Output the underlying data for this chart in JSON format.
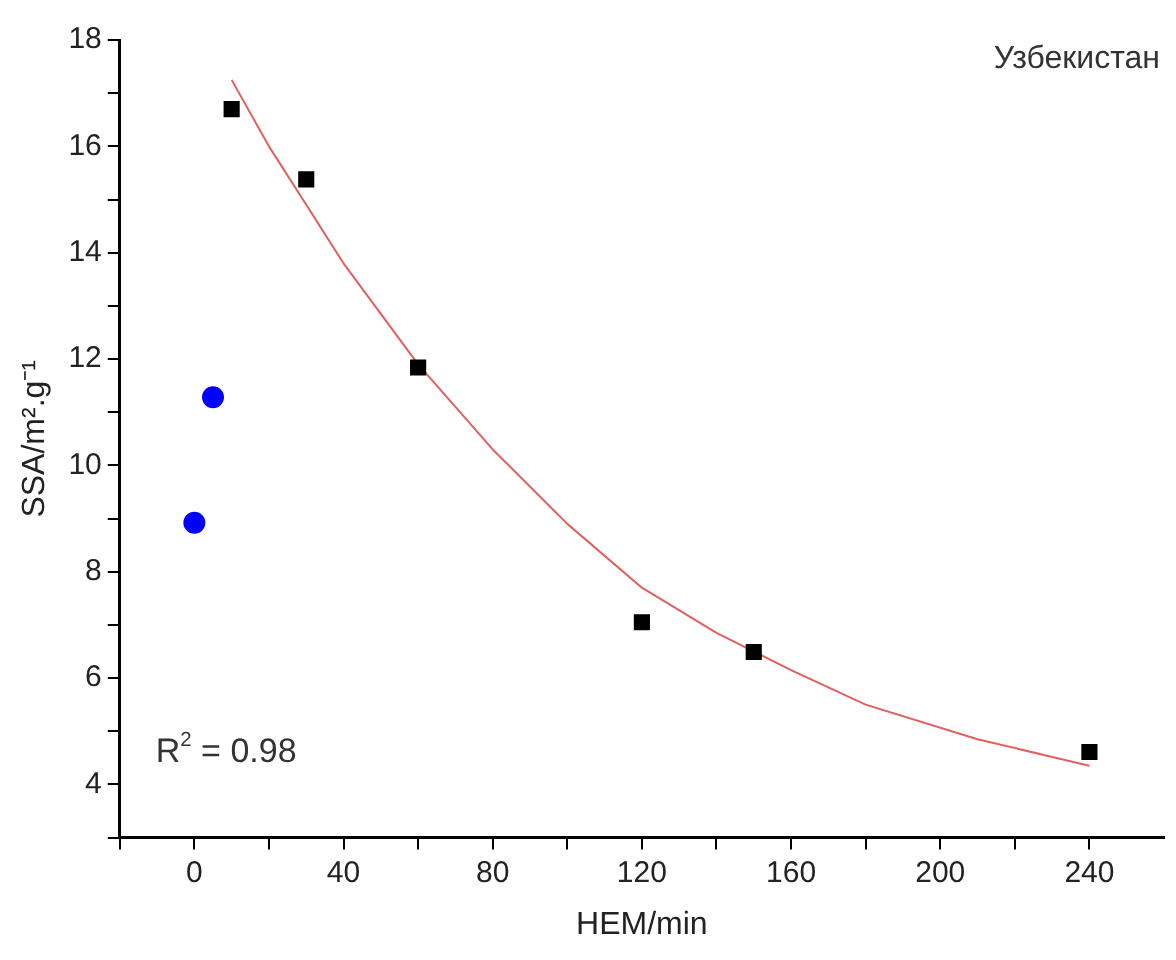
{
  "chart_data": {
    "type": "scatter",
    "xlabel": "HEM/min",
    "ylabel": "SSA/m².g⁻¹",
    "annotations": [
      "Узбекистан",
      "R$^{2}$ = 0.98"
    ],
    "series": [
      {
        "type": "scatter",
        "color": "#0000ff",
        "marker": "circle",
        "x": [
          0,
          5
        ],
        "values": [
          8.92,
          11.28
        ]
      },
      {
        "type": "scatter",
        "color": "#000000",
        "marker": "square",
        "x": [
          10,
          30,
          60,
          120,
          150,
          240
        ],
        "values": [
          16.7,
          15.38,
          11.84,
          7.05,
          6.49,
          4.61
        ]
      },
      {
        "type": "line",
        "color": "#e06060",
        "marker": "none",
        "line_style": "solid",
        "x": [
          10,
          20,
          30,
          40,
          60,
          80,
          100,
          120,
          140,
          160,
          180,
          210,
          240
        ],
        "values": [
          17.25,
          16.0,
          14.9,
          13.8,
          11.9,
          10.3,
          8.9,
          7.7,
          6.85,
          6.15,
          5.5,
          4.85,
          4.35
        ]
      }
    ],
    "xlim": [
      -20,
      260
    ],
    "xticks": [
      {
        "value": -20,
        "label": null
      },
      0,
      {
        "value": 20,
        "label": null
      },
      40,
      {
        "value": 60,
        "label": null
      },
      80,
      {
        "value": 100,
        "label": null
      },
      120,
      {
        "value": 140,
        "label": null
      },
      160,
      {
        "value": 180,
        "label": null
      },
      200,
      {
        "value": 220,
        "label": null
      },
      240
    ],
    "ylim": [
      3,
      18
    ],
    "yticks": [
      {
        "value": 3,
        "label": null
      },
      4,
      {
        "value": 5,
        "label": null
      },
      6,
      {
        "value": 7,
        "label": null
      },
      8,
      {
        "value": 9,
        "label": null
      },
      10,
      {
        "value": 11,
        "label": null
      },
      12,
      {
        "value": 13,
        "label": null
      },
      14,
      {
        "value": 15,
        "label": null
      },
      16,
      {
        "value": 17,
        "label": null
      },
      18
    ],
    "grid": false,
    "legend": false
  }
}
